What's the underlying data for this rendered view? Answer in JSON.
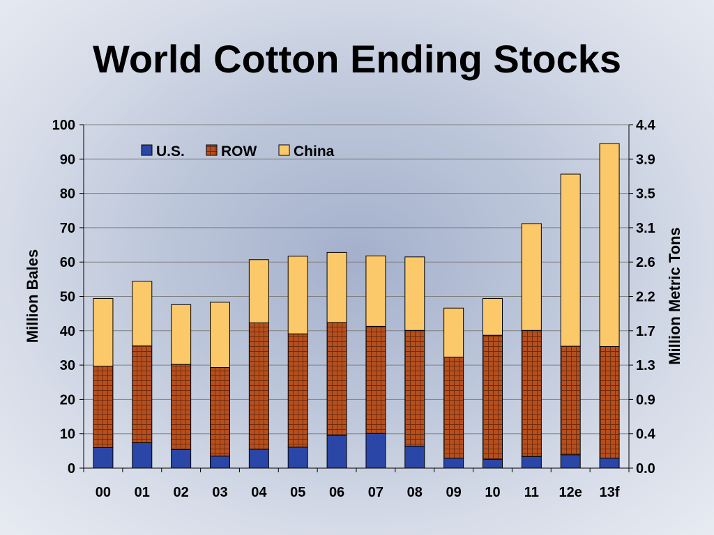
{
  "slide": {
    "title": "World Cotton Ending Stocks"
  },
  "colors": {
    "us": "#2a46a6",
    "row": "#b5501e",
    "row_grid": "#6e2a0c",
    "china": "#fcc96a",
    "gridline": "#7f7f7f"
  },
  "chart_data": {
    "type": "bar",
    "stacked": true,
    "title": "World Cotton Ending Stocks",
    "categories": [
      "00",
      "01",
      "02",
      "03",
      "04",
      "05",
      "06",
      "07",
      "08",
      "09",
      "10",
      "11",
      "12e",
      "13f"
    ],
    "series": [
      {
        "name": "U.S.",
        "values": [
          6.0,
          7.4,
          5.4,
          3.5,
          5.5,
          6.1,
          9.5,
          10.1,
          6.4,
          2.9,
          2.6,
          3.4,
          3.9,
          2.9
        ]
      },
      {
        "name": "ROW",
        "values": [
          23.7,
          28.2,
          24.8,
          25.8,
          36.8,
          33.0,
          32.9,
          31.2,
          33.7,
          29.4,
          36.1,
          36.7,
          31.6,
          32.5
        ]
      },
      {
        "name": "China",
        "values": [
          19.7,
          18.8,
          17.4,
          19.0,
          18.4,
          22.6,
          20.4,
          20.5,
          21.4,
          14.3,
          10.7,
          31.1,
          50.1,
          59.1
        ]
      }
    ],
    "ylabel": "Million Bales",
    "ylim": [
      0,
      100
    ],
    "yticks": [
      "0",
      "10",
      "20",
      "30",
      "40",
      "50",
      "60",
      "70",
      "80",
      "90",
      "100"
    ],
    "y2label": "Million Metric Tons",
    "y2ticks": [
      "0.0",
      "0.4",
      "0.9",
      "1.3",
      "1.7",
      "2.2",
      "2.6",
      "3.1",
      "3.5",
      "3.9",
      "4.4"
    ],
    "legend_position": "top-left inside plot",
    "grid": true
  }
}
